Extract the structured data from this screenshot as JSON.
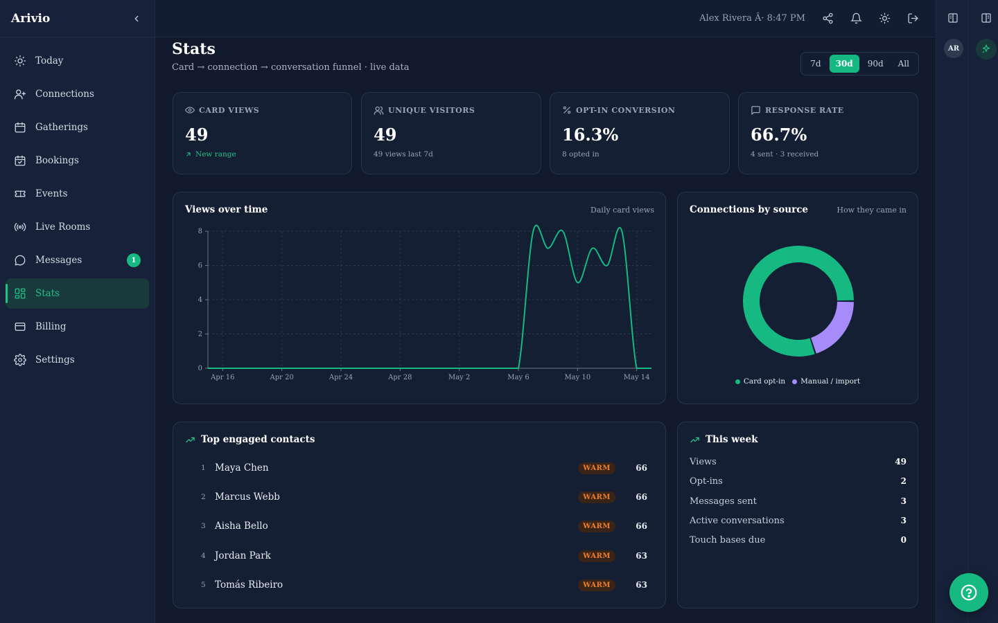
{
  "brand": "Arivio",
  "nav": [
    {
      "label": "Today",
      "icon": "sun-icon"
    },
    {
      "label": "Connections",
      "icon": "user-plus-icon"
    },
    {
      "label": "Gatherings",
      "icon": "calendar-icon"
    },
    {
      "label": "Bookings",
      "icon": "calendar-check-icon"
    },
    {
      "label": "Events",
      "icon": "ticket-icon"
    },
    {
      "label": "Live Rooms",
      "icon": "broadcast-icon"
    },
    {
      "label": "Messages",
      "icon": "message-icon",
      "badge": "1"
    },
    {
      "label": "Stats",
      "icon": "grid-icon",
      "active": true
    },
    {
      "label": "Billing",
      "icon": "credit-card-icon"
    },
    {
      "label": "Settings",
      "icon": "gear-icon"
    }
  ],
  "topbar": {
    "user": "Alex Rivera Â· 8:47 PM"
  },
  "rail": {
    "avatar": "AR"
  },
  "page": {
    "title": "Stats",
    "subtitle": "Card → connection → conversation funnel · live data",
    "ranges": [
      "7d",
      "30d",
      "90d",
      "All"
    ],
    "active_range": "30d"
  },
  "stats": [
    {
      "label": "CARD VIEWS",
      "icon": "eye-icon",
      "value": "49",
      "note": "New range",
      "note_style": "green"
    },
    {
      "label": "UNIQUE VISITORS",
      "icon": "users-icon",
      "value": "49",
      "note": "49 views last 7d"
    },
    {
      "label": "OPT-IN CONVERSION",
      "icon": "percent-icon",
      "value": "16.3%",
      "note": "8 opted in"
    },
    {
      "label": "RESPONSE RATE",
      "icon": "chat-icon",
      "value": "66.7%",
      "note": "4 sent · 3 received"
    }
  ],
  "views_chart": {
    "title": "Views over time",
    "subtitle": "Daily card views"
  },
  "source_chart": {
    "title": "Connections by source",
    "subtitle": "How they came in"
  },
  "chart_data": [
    {
      "type": "line",
      "title": "Views over time",
      "subtitle": "Daily card views",
      "x": [
        "Apr 15",
        "Apr 16",
        "Apr 17",
        "Apr 18",
        "Apr 19",
        "Apr 20",
        "Apr 21",
        "Apr 22",
        "Apr 23",
        "Apr 24",
        "Apr 25",
        "Apr 26",
        "Apr 27",
        "Apr 28",
        "Apr 29",
        "Apr 30",
        "May 1",
        "May 2",
        "May 3",
        "May 4",
        "May 5",
        "May 6",
        "May 7",
        "May 8",
        "May 9",
        "May 10",
        "May 11",
        "May 12",
        "May 13",
        "May 14",
        "May 15"
      ],
      "values": [
        0,
        0,
        0,
        0,
        0,
        0,
        0,
        0,
        0,
        0,
        0,
        0,
        0,
        0,
        0,
        0,
        0,
        0,
        0,
        0,
        0,
        0,
        8,
        7,
        8,
        5,
        7,
        6,
        8,
        0,
        0
      ],
      "x_ticks": [
        "Apr 16",
        "Apr 20",
        "Apr 24",
        "Apr 28",
        "May 2",
        "May 6",
        "May 10",
        "May 14"
      ],
      "y_ticks": [
        0,
        2,
        4,
        6,
        8
      ],
      "ylim": [
        0,
        8
      ],
      "grid": true,
      "color": "#16b981"
    },
    {
      "type": "pie",
      "title": "Connections by source",
      "subtitle": "How they came in",
      "donut": true,
      "slices": [
        {
          "label": "Card opt-in",
          "value": 8,
          "color": "#16b981"
        },
        {
          "label": "Manual / import",
          "value": 2,
          "color": "#a78bfa"
        }
      ],
      "legend": "bottom"
    }
  ],
  "contacts": {
    "title": "Top engaged contacts",
    "items": [
      {
        "rank": "1",
        "name": "Maya Chen",
        "tag": "WARM",
        "score": "66"
      },
      {
        "rank": "2",
        "name": "Marcus Webb",
        "tag": "WARM",
        "score": "66"
      },
      {
        "rank": "3",
        "name": "Aisha Bello",
        "tag": "WARM",
        "score": "66"
      },
      {
        "rank": "4",
        "name": "Jordan Park",
        "tag": "WARM",
        "score": "63"
      },
      {
        "rank": "5",
        "name": "Tomás Ribeiro",
        "tag": "WARM",
        "score": "63"
      }
    ]
  },
  "week": {
    "title": "This week",
    "rows": [
      {
        "label": "Views",
        "value": "49"
      },
      {
        "label": "Opt-ins",
        "value": "2"
      },
      {
        "label": "Messages sent",
        "value": "3"
      },
      {
        "label": "Active conversations",
        "value": "3"
      },
      {
        "label": "Touch bases due",
        "value": "0"
      }
    ]
  },
  "colors": {
    "accent": "#16b981",
    "warm": "#ec7e2d",
    "purple": "#a78bfa"
  }
}
